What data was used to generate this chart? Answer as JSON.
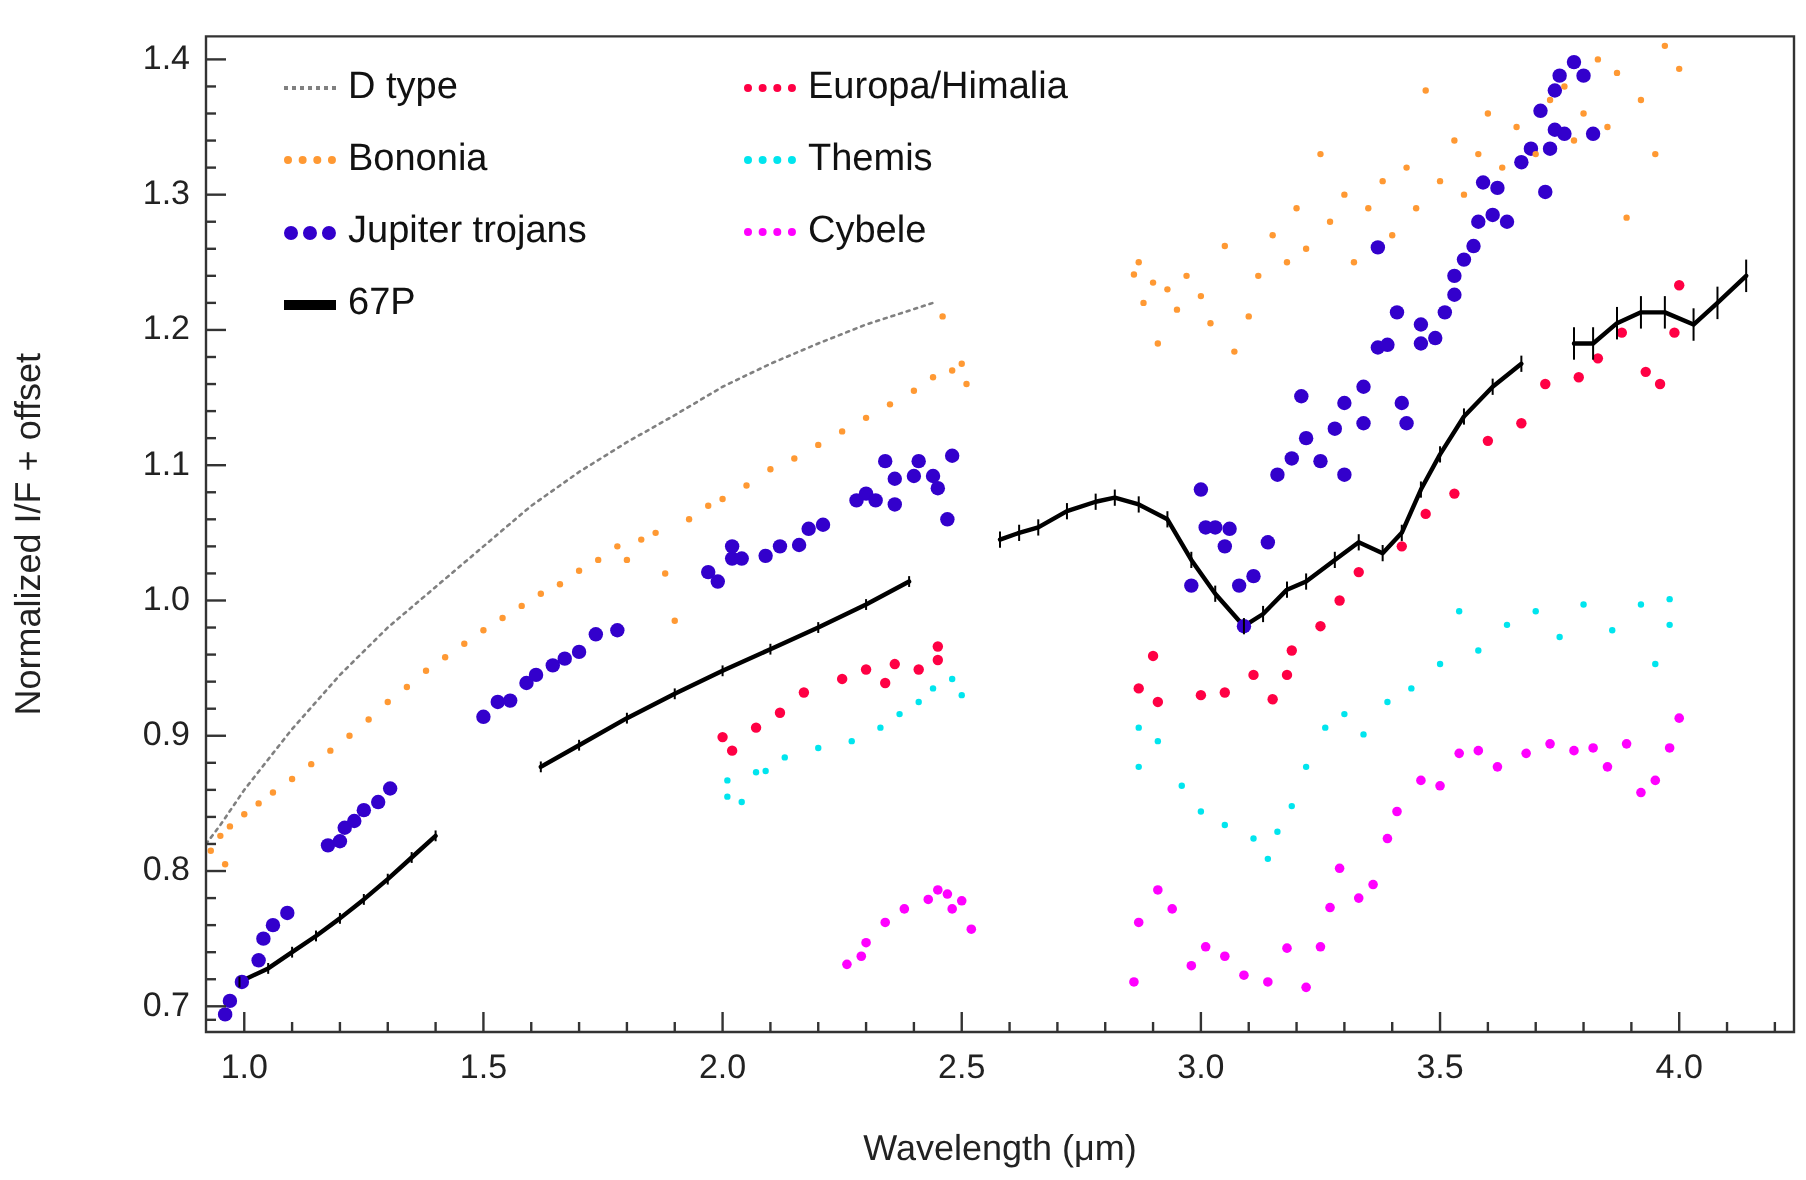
{
  "chart_data": {
    "type": "scatter",
    "xlabel": "Wavelength (μm)",
    "ylabel": "Normalized I/F + offset",
    "legend": "top left",
    "grid": false,
    "xlim": [
      0.92,
      4.24
    ],
    "ylim": [
      0.681,
      1.417
    ],
    "xticks": [
      {
        "value": 1,
        "label": "1.0"
      },
      {
        "value": 1.1,
        "label": null
      },
      {
        "value": 1.2,
        "label": null
      },
      {
        "value": 1.3,
        "label": null
      },
      {
        "value": 1.4,
        "label": null
      },
      1.5,
      {
        "value": 1.6,
        "label": null
      },
      {
        "value": 1.7,
        "label": null
      },
      {
        "value": 1.8,
        "label": null
      },
      {
        "value": 1.9,
        "label": null
      },
      {
        "value": 2,
        "label": "2.0"
      },
      {
        "value": 2.1,
        "label": null
      },
      {
        "value": 2.2,
        "label": null
      },
      {
        "value": 2.3,
        "label": null
      },
      {
        "value": 2.4,
        "label": null
      },
      2.5,
      {
        "value": 2.6,
        "label": null
      },
      {
        "value": 2.7,
        "label": null
      },
      {
        "value": 2.8,
        "label": null
      },
      {
        "value": 2.9,
        "label": null
      },
      {
        "value": 3,
        "label": "3.0"
      },
      {
        "value": 3.1,
        "label": null
      },
      {
        "value": 3.2,
        "label": null
      },
      {
        "value": 3.3,
        "label": null
      },
      {
        "value": 3.4,
        "label": null
      },
      3.5,
      {
        "value": 3.6,
        "label": null
      },
      {
        "value": 3.7,
        "label": null
      },
      {
        "value": 3.8,
        "label": null
      },
      {
        "value": 3.9,
        "label": null
      },
      {
        "value": 4,
        "label": "4.0"
      },
      {
        "value": 4.1,
        "label": null
      },
      {
        "value": 4.2,
        "label": null
      }
    ],
    "yticks": [
      {
        "value": 0.69,
        "label": null
      },
      {
        "value": 0.7,
        "label": "0.7"
      },
      {
        "value": 0.72,
        "label": null
      },
      {
        "value": 0.74,
        "label": null
      },
      {
        "value": 0.76,
        "label": null
      },
      {
        "value": 0.78,
        "label": null
      },
      {
        "value": 0.8,
        "label": "0.8"
      },
      {
        "value": 0.82,
        "label": null
      },
      {
        "value": 0.84,
        "label": null
      },
      {
        "value": 0.86,
        "label": null
      },
      {
        "value": 0.88,
        "label": null
      },
      {
        "value": 0.9,
        "label": "0.9"
      },
      {
        "value": 0.92,
        "label": null
      },
      {
        "value": 0.94,
        "label": null
      },
      {
        "value": 0.96,
        "label": null
      },
      {
        "value": 0.98,
        "label": null
      },
      {
        "value": 1,
        "label": "1.0"
      },
      {
        "value": 1.02,
        "label": null
      },
      {
        "value": 1.04,
        "label": null
      },
      {
        "value": 1.06,
        "label": null
      },
      {
        "value": 1.08,
        "label": null
      },
      1.1,
      {
        "value": 1.12,
        "label": null
      },
      {
        "value": 1.14,
        "label": null
      },
      {
        "value": 1.16,
        "label": null
      },
      {
        "value": 1.18,
        "label": null
      },
      1.2,
      {
        "value": 1.22,
        "label": null
      },
      {
        "value": 1.24,
        "label": null
      },
      {
        "value": 1.26,
        "label": null
      },
      {
        "value": 1.28,
        "label": null
      },
      1.3,
      {
        "value": 1.32,
        "label": null
      },
      {
        "value": 1.34,
        "label": null
      },
      {
        "value": 1.36,
        "label": null
      },
      {
        "value": 1.38,
        "label": null
      },
      1.4
    ],
    "series": [
      {
        "name": "D type",
        "type": "line",
        "line_style": "dotted",
        "marker": "none",
        "color": "#808080",
        "x": [
          0.92,
          0.95,
          1.0,
          1.1,
          1.2,
          1.3,
          1.4,
          1.5,
          1.6,
          1.7,
          1.8,
          1.9,
          2.0,
          2.1,
          2.2,
          2.3,
          2.44
        ],
        "values": [
          0.82,
          0.834,
          0.86,
          0.905,
          0.945,
          0.98,
          1.01,
          1.04,
          1.07,
          1.095,
          1.117,
          1.137,
          1.158,
          1.175,
          1.19,
          1.204,
          1.22
        ]
      },
      {
        "name": "Bononia",
        "marker": "circle",
        "color": "#ff9933",
        "x": [
          0.93,
          0.95,
          0.96,
          0.97,
          1.0,
          1.03,
          1.06,
          1.1,
          1.14,
          1.18,
          1.22,
          1.26,
          1.3,
          1.34,
          1.38,
          1.42,
          1.46,
          1.5,
          1.54,
          1.58,
          1.62,
          1.66,
          1.7,
          1.74,
          1.78,
          1.8,
          1.83,
          1.86,
          1.88,
          1.9,
          1.93,
          1.97,
          2.0,
          2.05,
          2.1,
          2.15,
          2.2,
          2.25,
          2.3,
          2.35,
          2.4,
          2.44,
          2.46,
          2.48,
          2.5,
          2.51,
          2.86,
          2.87,
          2.88,
          2.9,
          2.91,
          2.93,
          2.95,
          2.97,
          3.0,
          3.02,
          3.05,
          3.07,
          3.1,
          3.12,
          3.15,
          3.18,
          3.2,
          3.22,
          3.25,
          3.27,
          3.3,
          3.32,
          3.35,
          3.38,
          3.4,
          3.43,
          3.45,
          3.47,
          3.5,
          3.53,
          3.55,
          3.58,
          3.6,
          3.63,
          3.66,
          3.7,
          3.73,
          3.76,
          3.78,
          3.8,
          3.83,
          3.85,
          3.87,
          3.89,
          3.92,
          3.95,
          3.97,
          4.0
        ],
        "values": [
          0.815,
          0.826,
          0.805,
          0.833,
          0.842,
          0.85,
          0.858,
          0.868,
          0.879,
          0.889,
          0.9,
          0.912,
          0.925,
          0.936,
          0.948,
          0.958,
          0.968,
          0.978,
          0.987,
          0.996,
          1.005,
          1.012,
          1.022,
          1.03,
          1.04,
          1.03,
          1.045,
          1.05,
          1.02,
          0.985,
          1.06,
          1.07,
          1.075,
          1.085,
          1.097,
          1.105,
          1.115,
          1.125,
          1.135,
          1.145,
          1.155,
          1.165,
          1.21,
          1.17,
          1.175,
          1.16,
          1.241,
          1.25,
          1.22,
          1.235,
          1.19,
          1.23,
          1.215,
          1.24,
          1.225,
          1.205,
          1.262,
          1.184,
          1.21,
          1.24,
          1.27,
          1.25,
          1.29,
          1.26,
          1.33,
          1.28,
          1.3,
          1.25,
          1.29,
          1.31,
          1.27,
          1.32,
          1.29,
          1.377,
          1.31,
          1.34,
          1.3,
          1.33,
          1.36,
          1.32,
          1.35,
          1.33,
          1.37,
          1.38,
          1.34,
          1.36,
          1.4,
          1.35,
          1.39,
          1.283,
          1.37,
          1.33,
          1.41,
          1.393
        ]
      },
      {
        "name": "Jupiter trojans",
        "marker": "circle",
        "color": "#3300cc",
        "x": [
          0.96,
          0.97,
          0.995,
          1.03,
          1.04,
          1.06,
          1.09,
          1.175,
          1.2,
          1.21,
          1.23,
          1.25,
          1.28,
          1.305,
          1.5,
          1.53,
          1.556,
          1.59,
          1.61,
          1.645,
          1.67,
          1.7,
          1.735,
          1.78,
          1.97,
          1.99,
          2.02,
          2.02,
          2.04,
          2.09,
          2.12,
          2.16,
          2.18,
          2.21,
          2.28,
          2.3,
          2.32,
          2.34,
          2.36,
          2.36,
          2.4,
          2.41,
          2.44,
          2.45,
          2.47,
          2.48,
          2.98,
          3.0,
          3.01,
          3.03,
          3.05,
          3.06,
          3.08,
          3.09,
          3.11,
          3.14,
          3.16,
          3.19,
          3.21,
          3.22,
          3.25,
          3.28,
          3.3,
          3.3,
          3.34,
          3.34,
          3.37,
          3.37,
          3.39,
          3.41,
          3.42,
          3.43,
          3.46,
          3.46,
          3.49,
          3.51,
          3.53,
          3.53,
          3.55,
          3.57,
          3.58,
          3.59,
          3.61,
          3.62,
          3.64,
          3.67,
          3.69,
          3.71,
          3.72,
          3.73,
          3.74,
          3.74,
          3.75,
          3.76,
          3.78,
          3.8,
          3.82
        ],
        "values": [
          0.694,
          0.704,
          0.718,
          0.734,
          0.75,
          0.76,
          0.769,
          0.819,
          0.822,
          0.832,
          0.837,
          0.845,
          0.851,
          0.861,
          0.914,
          0.925,
          0.926,
          0.939,
          0.945,
          0.952,
          0.957,
          0.962,
          0.975,
          0.978,
          1.021,
          1.014,
          1.04,
          1.031,
          1.031,
          1.033,
          1.04,
          1.041,
          1.053,
          1.056,
          1.074,
          1.079,
          1.074,
          1.103,
          1.09,
          1.071,
          1.092,
          1.103,
          1.092,
          1.083,
          1.06,
          1.107,
          1.011,
          1.082,
          1.054,
          1.054,
          1.04,
          1.053,
          1.011,
          0.981,
          1.018,
          1.043,
          1.093,
          1.105,
          1.151,
          1.12,
          1.103,
          1.127,
          1.093,
          1.146,
          1.158,
          1.131,
          1.261,
          1.187,
          1.189,
          1.213,
          1.146,
          1.131,
          1.204,
          1.19,
          1.194,
          1.213,
          1.226,
          1.24,
          1.252,
          1.262,
          1.28,
          1.309,
          1.285,
          1.305,
          1.28,
          1.324,
          1.334,
          1.362,
          1.302,
          1.334,
          1.348,
          1.377,
          1.388,
          1.345,
          1.398,
          1.388,
          1.345
        ]
      },
      {
        "name": "67P",
        "type": "line",
        "line_style": "solid",
        "marker": "none",
        "color": "#000000",
        "x": [
          0.99,
          1.05,
          1.1,
          1.15,
          1.2,
          1.25,
          1.3,
          1.35,
          1.4,
          1.5,
          1.62,
          1.7,
          1.8,
          1.9,
          2.0,
          2.1,
          2.2,
          2.3,
          2.39,
          2.48,
          2.58,
          2.62,
          2.66,
          2.72,
          2.78,
          2.82,
          2.87,
          2.93,
          2.98,
          3.03,
          3.09,
          3.13,
          3.18,
          3.22,
          3.28,
          3.33,
          3.38,
          3.42,
          3.46,
          3.5,
          3.55,
          3.61,
          3.67,
          3.72,
          3.78,
          3.82,
          3.87,
          3.92,
          3.97,
          4.03,
          4.08,
          4.14
        ],
        "values": [
          0.718,
          0.728,
          0.74,
          0.752,
          0.765,
          0.779,
          0.794,
          0.81,
          0.826,
          null,
          0.877,
          0.893,
          0.913,
          0.931,
          0.948,
          0.964,
          0.98,
          0.997,
          1.014,
          null,
          1.045,
          1.05,
          1.054,
          1.066,
          1.073,
          1.076,
          1.071,
          1.06,
          1.03,
          1.005,
          0.981,
          0.99,
          1.008,
          1.014,
          1.03,
          1.043,
          1.035,
          1.05,
          1.082,
          1.108,
          1.136,
          1.158,
          1.175,
          null,
          1.19,
          1.19,
          1.205,
          1.213,
          1.213,
          1.204,
          1.22,
          1.24
        ],
        "errors": [
          0.004,
          0.004,
          0.004,
          0.004,
          0.004,
          0.004,
          0.004,
          0.004,
          0.004,
          null,
          0.004,
          0.004,
          0.004,
          0.004,
          0.004,
          0.004,
          0.004,
          0.004,
          0.004,
          null,
          0.006,
          0.006,
          0.006,
          0.006,
          0.006,
          0.006,
          0.006,
          0.006,
          0.006,
          0.006,
          0.006,
          0.006,
          0.006,
          0.006,
          0.006,
          0.006,
          0.006,
          0.006,
          0.006,
          0.006,
          0.006,
          0.006,
          0.006,
          null,
          0.012,
          0.012,
          0.012,
          0.012,
          0.012,
          0.012,
          0.012,
          0.012
        ]
      },
      {
        "name": "Europa/Himalia",
        "marker": "circle",
        "color": "#ff0044",
        "x": [
          2.0,
          2.02,
          2.07,
          2.12,
          2.17,
          2.25,
          2.3,
          2.34,
          2.36,
          2.41,
          2.45,
          2.45,
          2.87,
          2.9,
          2.91,
          3.0,
          3.05,
          3.11,
          3.15,
          3.18,
          3.19,
          3.25,
          3.29,
          3.33,
          3.42,
          3.47,
          3.53,
          3.6,
          3.67,
          3.72,
          3.79,
          3.83,
          3.88,
          3.93,
          3.96,
          3.99,
          4.0
        ],
        "values": [
          0.899,
          0.889,
          0.906,
          0.917,
          0.932,
          0.942,
          0.949,
          0.939,
          0.953,
          0.949,
          0.966,
          0.956,
          0.935,
          0.959,
          0.925,
          0.93,
          0.932,
          0.945,
          0.927,
          0.945,
          0.963,
          0.981,
          1.0,
          1.021,
          1.04,
          1.064,
          1.079,
          1.118,
          1.131,
          1.16,
          1.165,
          1.179,
          1.198,
          1.169,
          1.16,
          1.198,
          1.233
        ]
      },
      {
        "name": "Themis",
        "marker": "circle",
        "color": "#00e5ee",
        "x": [
          2.01,
          2.01,
          2.04,
          2.07,
          2.09,
          2.13,
          2.2,
          2.27,
          2.33,
          2.37,
          2.41,
          2.44,
          2.48,
          2.5,
          2.87,
          2.87,
          2.91,
          2.96,
          3.0,
          3.05,
          3.11,
          3.14,
          3.16,
          3.19,
          3.22,
          3.26,
          3.3,
          3.34,
          3.39,
          3.44,
          3.5,
          3.54,
          3.58,
          3.64,
          3.7,
          3.75,
          3.8,
          3.86,
          3.92,
          3.95,
          3.98,
          3.98
        ],
        "values": [
          0.867,
          0.855,
          0.851,
          0.873,
          0.874,
          0.884,
          0.891,
          0.896,
          0.906,
          0.916,
          0.925,
          0.935,
          0.942,
          0.93,
          0.906,
          0.877,
          0.896,
          0.863,
          0.844,
          0.834,
          0.824,
          0.809,
          0.829,
          0.848,
          0.877,
          0.906,
          0.916,
          0.901,
          0.925,
          0.935,
          0.953,
          0.992,
          0.963,
          0.982,
          0.992,
          0.973,
          0.997,
          0.978,
          0.997,
          0.953,
          1.001,
          0.982
        ]
      },
      {
        "name": "Cybele",
        "marker": "circle",
        "color": "#ff00ff",
        "x": [
          2.26,
          2.29,
          2.3,
          2.34,
          2.38,
          2.43,
          2.45,
          2.47,
          2.48,
          2.5,
          2.52,
          2.86,
          2.87,
          2.91,
          2.94,
          2.98,
          3.01,
          3.05,
          3.09,
          3.14,
          3.18,
          3.22,
          3.25,
          3.27,
          3.29,
          3.33,
          3.36,
          3.39,
          3.41,
          3.46,
          3.5,
          3.54,
          3.58,
          3.62,
          3.68,
          3.73,
          3.78,
          3.82,
          3.85,
          3.89,
          3.92,
          3.95,
          3.98,
          4.0
        ],
        "values": [
          0.731,
          0.737,
          0.747,
          0.762,
          0.772,
          0.779,
          0.786,
          0.783,
          0.772,
          0.778,
          0.757,
          0.718,
          0.762,
          0.786,
          0.772,
          0.73,
          0.744,
          0.737,
          0.723,
          0.718,
          0.743,
          0.714,
          0.744,
          0.773,
          0.802,
          0.78,
          0.79,
          0.824,
          0.844,
          0.867,
          0.863,
          0.887,
          0.889,
          0.877,
          0.887,
          0.894,
          0.889,
          0.891,
          0.877,
          0.894,
          0.858,
          0.867,
          0.891,
          0.913
        ]
      }
    ]
  }
}
